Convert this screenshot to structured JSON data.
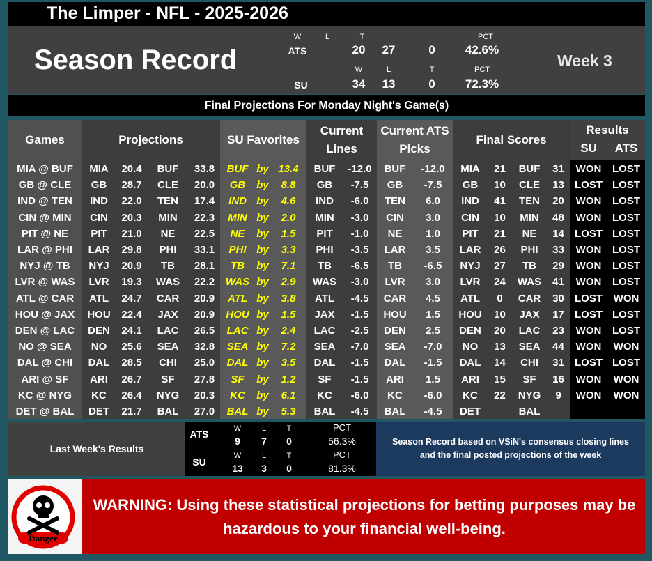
{
  "title": "The Limper - NFL - 2025-2026",
  "season": {
    "title": "Season Record",
    "week": "Week 3",
    "headers": {
      "w": "W",
      "l": "L",
      "t": "T",
      "pct": "PCT"
    },
    "ats": {
      "label": "ATS",
      "w": "20",
      "l": "27",
      "t": "0",
      "pct": "42.6%"
    },
    "su": {
      "label": "SU",
      "w": "34",
      "l": "13",
      "t": "0",
      "pct": "72.3%"
    }
  },
  "subtitle": "Final Projections For Monday Night's Game(s)",
  "table": {
    "headers": {
      "games": "Games",
      "projections": "Projections",
      "su_favorites": "SU Favorites",
      "current_lines": "Current Lines",
      "ats_picks": "Current ATS Picks",
      "final_scores": "Final Scores",
      "results": "Results",
      "su": "SU",
      "ats": "ATS"
    },
    "rows": [
      {
        "game": "MIA @ BUF",
        "pa": "MIA",
        "pav": "20.4",
        "pb": "BUF",
        "pbv": "33.8",
        "fav": "BUF",
        "by": "by",
        "favv": "13.4",
        "lt": "BUF",
        "lv": "-12.0",
        "kt": "BUF",
        "kv": "-12.0",
        "sa": "MIA",
        "sav": "21",
        "sb": "BUF",
        "sbv": "31",
        "su": "WON",
        "ats": "LOST"
      },
      {
        "game": "GB @ CLE",
        "pa": "GB",
        "pav": "28.7",
        "pb": "CLE",
        "pbv": "20.0",
        "fav": "GB",
        "by": "by",
        "favv": "8.8",
        "lt": "GB",
        "lv": "-7.5",
        "kt": "GB",
        "kv": "-7.5",
        "sa": "GB",
        "sav": "10",
        "sb": "CLE",
        "sbv": "13",
        "su": "LOST",
        "ats": "LOST"
      },
      {
        "game": "IND @ TEN",
        "pa": "IND",
        "pav": "22.0",
        "pb": "TEN",
        "pbv": "17.4",
        "fav": "IND",
        "by": "by",
        "favv": "4.6",
        "lt": "IND",
        "lv": "-6.0",
        "kt": "TEN",
        "kv": "6.0",
        "sa": "IND",
        "sav": "41",
        "sb": "TEN",
        "sbv": "20",
        "su": "WON",
        "ats": "LOST"
      },
      {
        "game": "CIN @ MIN",
        "pa": "CIN",
        "pav": "20.3",
        "pb": "MIN",
        "pbv": "22.3",
        "fav": "MIN",
        "by": "by",
        "favv": "2.0",
        "lt": "MIN",
        "lv": "-3.0",
        "kt": "CIN",
        "kv": "3.0",
        "sa": "CIN",
        "sav": "10",
        "sb": "MIN",
        "sbv": "48",
        "su": "WON",
        "ats": "LOST"
      },
      {
        "game": "PIT @ NE",
        "pa": "PIT",
        "pav": "21.0",
        "pb": "NE",
        "pbv": "22.5",
        "fav": "NE",
        "by": "by",
        "favv": "1.5",
        "lt": "PIT",
        "lv": "-1.0",
        "kt": "NE",
        "kv": "1.0",
        "sa": "PIT",
        "sav": "21",
        "sb": "NE",
        "sbv": "14",
        "su": "LOST",
        "ats": "LOST"
      },
      {
        "game": "LAR @ PHI",
        "pa": "LAR",
        "pav": "29.8",
        "pb": "PHI",
        "pbv": "33.1",
        "fav": "PHI",
        "by": "by",
        "favv": "3.3",
        "lt": "PHI",
        "lv": "-3.5",
        "kt": "LAR",
        "kv": "3.5",
        "sa": "LAR",
        "sav": "26",
        "sb": "PHI",
        "sbv": "33",
        "su": "WON",
        "ats": "LOST"
      },
      {
        "game": "NYJ @ TB",
        "pa": "NYJ",
        "pav": "20.9",
        "pb": "TB",
        "pbv": "28.1",
        "fav": "TB",
        "by": "by",
        "favv": "7.1",
        "lt": "TB",
        "lv": "-6.5",
        "kt": "TB",
        "kv": "-6.5",
        "sa": "NYJ",
        "sav": "27",
        "sb": "TB",
        "sbv": "29",
        "su": "WON",
        "ats": "LOST"
      },
      {
        "game": "LVR @ WAS",
        "pa": "LVR",
        "pav": "19.3",
        "pb": "WAS",
        "pbv": "22.2",
        "fav": "WAS",
        "by": "by",
        "favv": "2.9",
        "lt": "WAS",
        "lv": "-3.0",
        "kt": "LVR",
        "kv": "3.0",
        "sa": "LVR",
        "sav": "24",
        "sb": "WAS",
        "sbv": "41",
        "su": "WON",
        "ats": "LOST"
      },
      {
        "game": "ATL @ CAR",
        "pa": "ATL",
        "pav": "24.7",
        "pb": "CAR",
        "pbv": "20.9",
        "fav": "ATL",
        "by": "by",
        "favv": "3.8",
        "lt": "ATL",
        "lv": "-4.5",
        "kt": "CAR",
        "kv": "4.5",
        "sa": "ATL",
        "sav": "0",
        "sb": "CAR",
        "sbv": "30",
        "su": "LOST",
        "ats": "WON"
      },
      {
        "game": "HOU @ JAX",
        "pa": "HOU",
        "pav": "22.4",
        "pb": "JAX",
        "pbv": "20.9",
        "fav": "HOU",
        "by": "by",
        "favv": "1.5",
        "lt": "JAX",
        "lv": "-1.5",
        "kt": "HOU",
        "kv": "1.5",
        "sa": "HOU",
        "sav": "10",
        "sb": "JAX",
        "sbv": "17",
        "su": "LOST",
        "ats": "LOST"
      },
      {
        "game": "DEN @ LAC",
        "pa": "DEN",
        "pav": "24.1",
        "pb": "LAC",
        "pbv": "26.5",
        "fav": "LAC",
        "by": "by",
        "favv": "2.4",
        "lt": "LAC",
        "lv": "-2.5",
        "kt": "DEN",
        "kv": "2.5",
        "sa": "DEN",
        "sav": "20",
        "sb": "LAC",
        "sbv": "23",
        "su": "WON",
        "ats": "LOST"
      },
      {
        "game": "NO @ SEA",
        "pa": "NO",
        "pav": "25.6",
        "pb": "SEA",
        "pbv": "32.8",
        "fav": "SEA",
        "by": "by",
        "favv": "7.2",
        "lt": "SEA",
        "lv": "-7.0",
        "kt": "SEA",
        "kv": "-7.0",
        "sa": "NO",
        "sav": "13",
        "sb": "SEA",
        "sbv": "44",
        "su": "WON",
        "ats": "WON"
      },
      {
        "game": "DAL @ CHI",
        "pa": "DAL",
        "pav": "28.5",
        "pb": "CHI",
        "pbv": "25.0",
        "fav": "DAL",
        "by": "by",
        "favv": "3.5",
        "lt": "DAL",
        "lv": "-1.5",
        "kt": "DAL",
        "kv": "-1.5",
        "sa": "DAL",
        "sav": "14",
        "sb": "CHI",
        "sbv": "31",
        "su": "LOST",
        "ats": "LOST"
      },
      {
        "game": "ARI @ SF",
        "pa": "ARI",
        "pav": "26.7",
        "pb": "SF",
        "pbv": "27.8",
        "fav": "SF",
        "by": "by",
        "favv": "1.2",
        "lt": "SF",
        "lv": "-1.5",
        "kt": "ARI",
        "kv": "1.5",
        "sa": "ARI",
        "sav": "15",
        "sb": "SF",
        "sbv": "16",
        "su": "WON",
        "ats": "WON"
      },
      {
        "game": "KC @ NYG",
        "pa": "KC",
        "pav": "26.4",
        "pb": "NYG",
        "pbv": "20.3",
        "fav": "KC",
        "by": "by",
        "favv": "6.1",
        "lt": "KC",
        "lv": "-6.0",
        "kt": "KC",
        "kv": "-6.0",
        "sa": "KC",
        "sav": "22",
        "sb": "NYG",
        "sbv": "9",
        "su": "WON",
        "ats": "WON"
      },
      {
        "game": "DET @ BAL",
        "pa": "DET",
        "pav": "21.7",
        "pb": "BAL",
        "pbv": "27.0",
        "fav": "BAL",
        "by": "by",
        "favv": "5.3",
        "lt": "BAL",
        "lv": "-4.5",
        "kt": "BAL",
        "kv": "-4.5",
        "sa": "DET",
        "sav": "",
        "sb": "BAL",
        "sbv": "",
        "su": "",
        "ats": ""
      }
    ]
  },
  "last_week": {
    "label": "Last Week's Results",
    "ats": {
      "label": "ATS",
      "w": "9",
      "l": "7",
      "t": "0",
      "pct": "56.3%"
    },
    "su": {
      "label": "SU",
      "w": "13",
      "l": "3",
      "t": "0",
      "pct": "81.3%"
    }
  },
  "note": "Season Record based on VSiN's consensus closing lines and the final posted projections of the week",
  "warning": "WARNING: Using these statistical projections for betting purposes may be hazardous to your financial well-being.",
  "danger_label": "Danger"
}
